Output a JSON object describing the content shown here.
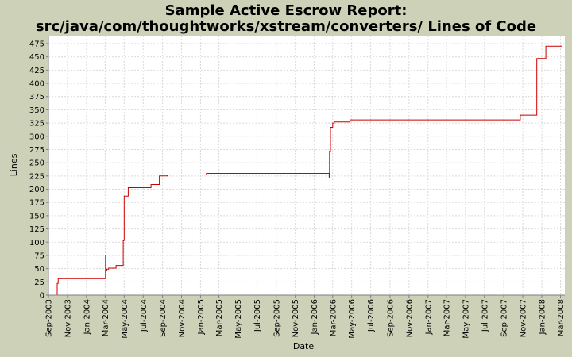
{
  "chart_data": {
    "type": "line",
    "step": true,
    "title_line1": "Sample Active Escrow Report:",
    "title_line2": "src/java/com/thoughtworks/xstream/converters/ Lines of Code",
    "xlabel": "Date",
    "ylabel": "Lines",
    "ylim": [
      0,
      490
    ],
    "y_ticks": [
      0,
      25,
      50,
      75,
      100,
      125,
      150,
      175,
      200,
      225,
      250,
      275,
      300,
      325,
      350,
      375,
      400,
      425,
      450,
      475
    ],
    "xlim": [
      "2003-09-01",
      "2008-03-15"
    ],
    "x_ticks": [
      {
        "date": "2003-09-01",
        "label": "Sep-2003"
      },
      {
        "date": "2003-11-01",
        "label": "Nov-2003"
      },
      {
        "date": "2004-01-01",
        "label": "Jan-2004"
      },
      {
        "date": "2004-03-01",
        "label": "Mar-2004"
      },
      {
        "date": "2004-05-01",
        "label": "May-2004"
      },
      {
        "date": "2004-07-01",
        "label": "Jul-2004"
      },
      {
        "date": "2004-09-01",
        "label": "Sep-2004"
      },
      {
        "date": "2004-11-01",
        "label": "Nov-2004"
      },
      {
        "date": "2005-01-01",
        "label": "Jan-2005"
      },
      {
        "date": "2005-03-01",
        "label": "Mar-2005"
      },
      {
        "date": "2005-05-01",
        "label": "May-2005"
      },
      {
        "date": "2005-07-01",
        "label": "Jul-2005"
      },
      {
        "date": "2005-09-01",
        "label": "Sep-2005"
      },
      {
        "date": "2005-11-01",
        "label": "Nov-2005"
      },
      {
        "date": "2006-01-01",
        "label": "Jan-2006"
      },
      {
        "date": "2006-03-01",
        "label": "Mar-2006"
      },
      {
        "date": "2006-05-01",
        "label": "May-2006"
      },
      {
        "date": "2006-07-01",
        "label": "Jul-2006"
      },
      {
        "date": "2006-09-01",
        "label": "Sep-2006"
      },
      {
        "date": "2006-11-01",
        "label": "Nov-2006"
      },
      {
        "date": "2007-01-01",
        "label": "Jan-2007"
      },
      {
        "date": "2007-03-01",
        "label": "Mar-2007"
      },
      {
        "date": "2007-05-01",
        "label": "May-2007"
      },
      {
        "date": "2007-07-01",
        "label": "Jul-2007"
      },
      {
        "date": "2007-09-01",
        "label": "Sep-2007"
      },
      {
        "date": "2007-11-01",
        "label": "Nov-2007"
      },
      {
        "date": "2008-01-01",
        "label": "Jan-2008"
      },
      {
        "date": "2008-03-01",
        "label": "Mar-2008"
      }
    ],
    "grid": true,
    "series": [
      {
        "color": "#cc0000",
        "points": [
          {
            "x": "2003-09-28",
            "y": 0
          },
          {
            "x": "2003-09-29",
            "y": 22
          },
          {
            "x": "2003-10-02",
            "y": 31
          },
          {
            "x": "2004-03-01",
            "y": 31
          },
          {
            "x": "2004-03-02",
            "y": 75
          },
          {
            "x": "2004-03-03",
            "y": 46
          },
          {
            "x": "2004-03-06",
            "y": 49
          },
          {
            "x": "2004-03-12",
            "y": 51
          },
          {
            "x": "2004-04-05",
            "y": 56
          },
          {
            "x": "2004-04-28",
            "y": 103
          },
          {
            "x": "2004-05-01",
            "y": 187
          },
          {
            "x": "2004-05-14",
            "y": 203
          },
          {
            "x": "2004-07-26",
            "y": 209
          },
          {
            "x": "2004-08-22",
            "y": 225
          },
          {
            "x": "2004-09-17",
            "y": 227
          },
          {
            "x": "2005-01-20",
            "y": 230
          },
          {
            "x": "2006-02-18",
            "y": 222
          },
          {
            "x": "2006-02-19",
            "y": 272
          },
          {
            "x": "2006-02-22",
            "y": 317
          },
          {
            "x": "2006-03-01",
            "y": 325
          },
          {
            "x": "2006-03-06",
            "y": 327
          },
          {
            "x": "2006-04-26",
            "y": 331
          },
          {
            "x": "2007-10-24",
            "y": 340
          },
          {
            "x": "2007-12-16",
            "y": 447
          },
          {
            "x": "2008-01-14",
            "y": 470
          },
          {
            "x": "2008-03-05",
            "y": 470
          }
        ]
      }
    ]
  },
  "colors": {
    "page_background": "#cdd1b7",
    "plot_background": "#ffffff",
    "gridline": "#d9d9d9",
    "series_line": "#cc0000"
  }
}
